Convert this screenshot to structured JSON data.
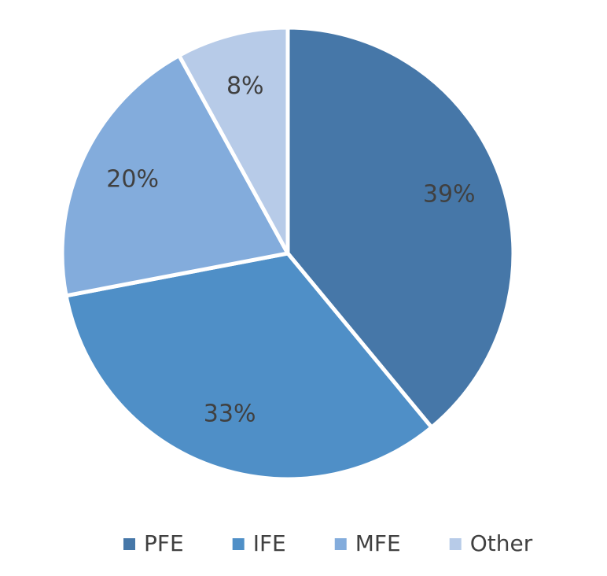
{
  "chart_data": {
    "type": "pie",
    "categories": [
      "PFE",
      "IFE",
      "MFE",
      "Other"
    ],
    "values": [
      39,
      33,
      20,
      8
    ],
    "value_labels": [
      "39%",
      "33%",
      "20%",
      "8%"
    ],
    "colors": [
      "#4677a8",
      "#4f8fc7",
      "#83acdc",
      "#b7cbe8"
    ],
    "legend": "bottom"
  }
}
